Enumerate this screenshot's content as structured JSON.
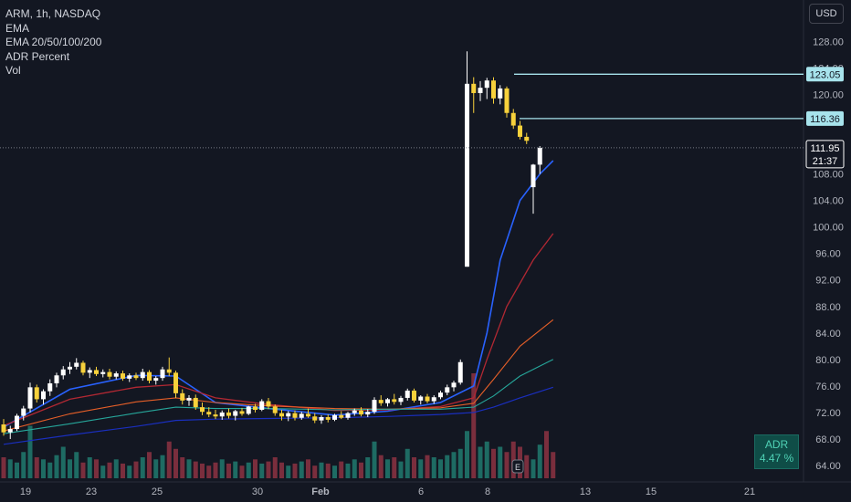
{
  "legend": {
    "symbol": "ARM, 1h, NASDAQ",
    "ind1": "EMA",
    "ind2": "EMA 20/50/100/200",
    "ind3": "ADR Percent",
    "ind4": "Vol"
  },
  "currency": "USD",
  "adr": {
    "label": "ADR",
    "value": "4.47 %"
  },
  "chart_data": {
    "type": "candlestick",
    "y_axis": {
      "ticks": [
        "128.00",
        "124.00",
        "120.00",
        "116.00",
        "112.00",
        "108.00",
        "104.00",
        "100.00",
        "96.00",
        "92.00",
        "88.00",
        "84.00",
        "80.00",
        "76.00",
        "72.00",
        "68.00",
        "64.00"
      ],
      "range": [
        63,
        130
      ]
    },
    "x_axis": {
      "ticks": [
        "19",
        "23",
        "25",
        "30",
        "Feb",
        "6",
        "8",
        "13",
        "15",
        "21"
      ]
    },
    "price_labels": [
      {
        "value": "123.05",
        "color": "#a7e3ec"
      },
      {
        "value": "116.36",
        "color": "#a7e3ec"
      },
      {
        "value": "111.95",
        "sub": "21:37",
        "color": "#ffffff"
      }
    ],
    "levels": [
      123.05,
      116.36
    ],
    "last_price": 111.95,
    "candles": [
      {
        "o": 70.2,
        "h": 71.0,
        "l": 68.5,
        "c": 69.0
      },
      {
        "o": 69.0,
        "h": 70.0,
        "l": 68.0,
        "c": 69.5
      },
      {
        "o": 69.5,
        "h": 71.8,
        "l": 69.2,
        "c": 71.5
      },
      {
        "o": 71.5,
        "h": 73.0,
        "l": 70.8,
        "c": 72.6
      },
      {
        "o": 72.6,
        "h": 76.5,
        "l": 72.0,
        "c": 75.8
      },
      {
        "o": 75.8,
        "h": 76.2,
        "l": 73.5,
        "c": 74.0
      },
      {
        "o": 74.0,
        "h": 75.5,
        "l": 73.2,
        "c": 75.2
      },
      {
        "o": 75.2,
        "h": 77.0,
        "l": 74.5,
        "c": 76.4
      },
      {
        "o": 76.4,
        "h": 78.0,
        "l": 75.8,
        "c": 77.6
      },
      {
        "o": 77.6,
        "h": 79.0,
        "l": 77.0,
        "c": 78.5
      },
      {
        "o": 78.5,
        "h": 79.6,
        "l": 77.8,
        "c": 78.9
      },
      {
        "o": 78.9,
        "h": 80.2,
        "l": 78.5,
        "c": 79.5
      },
      {
        "o": 79.5,
        "h": 79.8,
        "l": 77.6,
        "c": 78.0
      },
      {
        "o": 78.0,
        "h": 78.8,
        "l": 77.2,
        "c": 78.4
      },
      {
        "o": 78.4,
        "h": 78.9,
        "l": 77.5,
        "c": 77.8
      },
      {
        "o": 77.8,
        "h": 78.5,
        "l": 77.3,
        "c": 78.1
      },
      {
        "o": 78.1,
        "h": 78.6,
        "l": 77.0,
        "c": 77.4
      },
      {
        "o": 77.4,
        "h": 78.2,
        "l": 77.0,
        "c": 77.9
      },
      {
        "o": 77.9,
        "h": 78.3,
        "l": 76.8,
        "c": 77.1
      },
      {
        "o": 77.1,
        "h": 77.9,
        "l": 76.6,
        "c": 77.6
      },
      {
        "o": 77.6,
        "h": 78.0,
        "l": 76.9,
        "c": 77.2
      },
      {
        "o": 77.2,
        "h": 78.6,
        "l": 76.8,
        "c": 78.1
      },
      {
        "o": 78.1,
        "h": 78.4,
        "l": 76.4,
        "c": 76.8
      },
      {
        "o": 76.8,
        "h": 77.5,
        "l": 76.2,
        "c": 77.2
      },
      {
        "o": 77.2,
        "h": 78.9,
        "l": 76.8,
        "c": 78.5
      },
      {
        "o": 78.5,
        "h": 80.3,
        "l": 77.5,
        "c": 78.0
      },
      {
        "o": 78.0,
        "h": 78.3,
        "l": 74.2,
        "c": 74.9
      },
      {
        "o": 74.9,
        "h": 75.5,
        "l": 73.2,
        "c": 73.8
      },
      {
        "o": 73.8,
        "h": 74.6,
        "l": 73.0,
        "c": 74.2
      },
      {
        "o": 74.2,
        "h": 74.7,
        "l": 72.4,
        "c": 72.8
      },
      {
        "o": 72.8,
        "h": 73.5,
        "l": 71.6,
        "c": 72.1
      },
      {
        "o": 72.1,
        "h": 72.8,
        "l": 71.3,
        "c": 71.7
      },
      {
        "o": 71.7,
        "h": 72.4,
        "l": 71.0,
        "c": 71.4
      },
      {
        "o": 71.4,
        "h": 72.3,
        "l": 70.9,
        "c": 72.0
      },
      {
        "o": 72.0,
        "h": 72.6,
        "l": 71.1,
        "c": 71.5
      },
      {
        "o": 71.5,
        "h": 72.4,
        "l": 70.8,
        "c": 72.2
      },
      {
        "o": 72.2,
        "h": 72.7,
        "l": 71.5,
        "c": 71.8
      },
      {
        "o": 71.8,
        "h": 73.0,
        "l": 71.6,
        "c": 72.9
      },
      {
        "o": 72.9,
        "h": 73.3,
        "l": 72.0,
        "c": 72.4
      },
      {
        "o": 72.4,
        "h": 74.0,
        "l": 72.2,
        "c": 73.7
      },
      {
        "o": 73.7,
        "h": 74.2,
        "l": 72.5,
        "c": 72.9
      },
      {
        "o": 72.9,
        "h": 73.2,
        "l": 71.5,
        "c": 71.9
      },
      {
        "o": 71.9,
        "h": 72.4,
        "l": 70.8,
        "c": 71.4
      },
      {
        "o": 71.4,
        "h": 72.2,
        "l": 70.7,
        "c": 71.9
      },
      {
        "o": 71.9,
        "h": 72.3,
        "l": 70.8,
        "c": 71.2
      },
      {
        "o": 71.2,
        "h": 72.1,
        "l": 70.9,
        "c": 71.8
      },
      {
        "o": 71.8,
        "h": 72.6,
        "l": 71.2,
        "c": 71.4
      },
      {
        "o": 71.4,
        "h": 71.9,
        "l": 70.4,
        "c": 70.8
      },
      {
        "o": 70.8,
        "h": 71.6,
        "l": 70.3,
        "c": 71.3
      },
      {
        "o": 71.3,
        "h": 71.7,
        "l": 70.5,
        "c": 70.9
      },
      {
        "o": 70.9,
        "h": 71.8,
        "l": 70.7,
        "c": 71.6
      },
      {
        "o": 71.6,
        "h": 72.2,
        "l": 71.0,
        "c": 71.2
      },
      {
        "o": 71.2,
        "h": 72.1,
        "l": 70.9,
        "c": 71.9
      },
      {
        "o": 71.9,
        "h": 72.6,
        "l": 71.5,
        "c": 72.3
      },
      {
        "o": 72.3,
        "h": 72.8,
        "l": 71.4,
        "c": 71.7
      },
      {
        "o": 71.7,
        "h": 72.5,
        "l": 71.3,
        "c": 72.1
      },
      {
        "o": 72.1,
        "h": 74.3,
        "l": 71.8,
        "c": 73.9
      },
      {
        "o": 73.9,
        "h": 74.6,
        "l": 73.0,
        "c": 73.4
      },
      {
        "o": 73.4,
        "h": 74.2,
        "l": 72.9,
        "c": 74.0
      },
      {
        "o": 74.0,
        "h": 74.8,
        "l": 73.2,
        "c": 73.6
      },
      {
        "o": 73.6,
        "h": 74.5,
        "l": 73.1,
        "c": 74.2
      },
      {
        "o": 74.2,
        "h": 75.6,
        "l": 73.8,
        "c": 75.3
      },
      {
        "o": 75.3,
        "h": 75.6,
        "l": 73.5,
        "c": 73.8
      },
      {
        "o": 73.8,
        "h": 74.6,
        "l": 73.2,
        "c": 74.4
      },
      {
        "o": 74.4,
        "h": 74.8,
        "l": 73.4,
        "c": 73.7
      },
      {
        "o": 73.7,
        "h": 74.6,
        "l": 73.3,
        "c": 74.3
      },
      {
        "o": 74.3,
        "h": 75.3,
        "l": 74.0,
        "c": 75.0
      },
      {
        "o": 75.0,
        "h": 76.2,
        "l": 74.6,
        "c": 75.8
      },
      {
        "o": 75.8,
        "h": 76.8,
        "l": 75.2,
        "c": 76.5
      },
      {
        "o": 76.5,
        "h": 80.0,
        "l": 76.2,
        "c": 79.6
      },
      {
        "o": 94.0,
        "h": 126.5,
        "l": 94.0,
        "c": 121.6
      },
      {
        "o": 121.6,
        "h": 122.6,
        "l": 117.2,
        "c": 120.2
      },
      {
        "o": 120.2,
        "h": 122.0,
        "l": 119.0,
        "c": 121.0
      },
      {
        "o": 121.0,
        "h": 122.5,
        "l": 119.3,
        "c": 122.1
      },
      {
        "o": 122.1,
        "h": 122.6,
        "l": 118.6,
        "c": 119.4
      },
      {
        "o": 119.4,
        "h": 121.4,
        "l": 118.5,
        "c": 120.9
      },
      {
        "o": 120.9,
        "h": 121.2,
        "l": 116.5,
        "c": 117.2
      },
      {
        "o": 117.2,
        "h": 117.8,
        "l": 114.8,
        "c": 115.3
      },
      {
        "o": 115.3,
        "h": 116.0,
        "l": 113.2,
        "c": 113.6
      },
      {
        "o": 113.6,
        "h": 114.2,
        "l": 112.5,
        "c": 113.0
      },
      {
        "o": 106.0,
        "h": 109.5,
        "l": 102.0,
        "c": 109.4
      },
      {
        "o": 109.4,
        "h": 112.2,
        "l": 108.0,
        "c": 111.95
      }
    ],
    "ema_fast": [
      [
        0,
        69.8
      ],
      [
        10,
        75.5
      ],
      [
        20,
        77.6
      ],
      [
        26,
        77.5
      ],
      [
        32,
        73.5
      ],
      [
        40,
        72.6
      ],
      [
        50,
        71.6
      ],
      [
        58,
        72.2
      ],
      [
        66,
        73.5
      ],
      [
        71,
        76.0
      ],
      [
        73,
        84.0
      ],
      [
        75,
        95.0
      ],
      [
        78,
        104.0
      ],
      [
        81,
        108.0
      ],
      [
        83,
        110.0
      ]
    ],
    "ema20": [
      [
        0,
        70.0
      ],
      [
        10,
        74.0
      ],
      [
        20,
        75.8
      ],
      [
        26,
        76.2
      ],
      [
        32,
        74.2
      ],
      [
        40,
        73.2
      ],
      [
        50,
        72.3
      ],
      [
        58,
        72.4
      ],
      [
        66,
        72.9
      ],
      [
        71,
        74.2
      ],
      [
        73,
        80.0
      ],
      [
        76,
        88.0
      ],
      [
        80,
        95.0
      ],
      [
        83,
        99.0
      ]
    ],
    "ema50": [
      [
        0,
        69.2
      ],
      [
        10,
        71.8
      ],
      [
        20,
        73.6
      ],
      [
        26,
        74.2
      ],
      [
        32,
        73.5
      ],
      [
        40,
        73.0
      ],
      [
        50,
        72.6
      ],
      [
        58,
        72.5
      ],
      [
        66,
        72.7
      ],
      [
        71,
        73.4
      ],
      [
        74,
        77.0
      ],
      [
        78,
        82.0
      ],
      [
        83,
        86.0
      ]
    ],
    "ema100": [
      [
        0,
        68.8
      ],
      [
        10,
        70.3
      ],
      [
        20,
        71.9
      ],
      [
        26,
        72.8
      ],
      [
        32,
        72.6
      ],
      [
        40,
        72.6
      ],
      [
        50,
        72.4
      ],
      [
        58,
        72.5
      ],
      [
        66,
        72.5
      ],
      [
        71,
        72.8
      ],
      [
        74,
        74.5
      ],
      [
        78,
        77.5
      ],
      [
        83,
        80.0
      ]
    ],
    "ema200": [
      [
        0,
        67.2
      ],
      [
        10,
        68.6
      ],
      [
        20,
        69.9
      ],
      [
        26,
        70.8
      ],
      [
        32,
        71.0
      ],
      [
        40,
        71.1
      ],
      [
        50,
        71.2
      ],
      [
        58,
        71.4
      ],
      [
        66,
        71.7
      ],
      [
        71,
        72.0
      ],
      [
        74,
        72.8
      ],
      [
        78,
        74.2
      ],
      [
        83,
        75.8
      ]
    ],
    "volume": [
      0.2,
      0.18,
      0.15,
      0.25,
      0.5,
      0.2,
      0.18,
      0.15,
      0.22,
      0.3,
      0.18,
      0.25,
      0.15,
      0.2,
      0.18,
      0.12,
      0.15,
      0.18,
      0.14,
      0.12,
      0.16,
      0.2,
      0.25,
      0.18,
      0.22,
      0.35,
      0.28,
      0.2,
      0.18,
      0.16,
      0.14,
      0.12,
      0.15,
      0.18,
      0.14,
      0.16,
      0.12,
      0.15,
      0.18,
      0.14,
      0.16,
      0.2,
      0.15,
      0.12,
      0.14,
      0.16,
      0.18,
      0.12,
      0.15,
      0.14,
      0.12,
      0.16,
      0.14,
      0.18,
      0.15,
      0.2,
      0.35,
      0.22,
      0.18,
      0.2,
      0.16,
      0.28,
      0.2,
      0.18,
      0.22,
      0.2,
      0.18,
      0.22,
      0.25,
      0.28,
      0.45,
      1.0,
      0.3,
      0.35,
      0.28,
      0.3,
      0.25,
      0.35,
      0.3,
      0.22,
      0.18,
      0.32,
      0.45,
      0.25
    ]
  }
}
